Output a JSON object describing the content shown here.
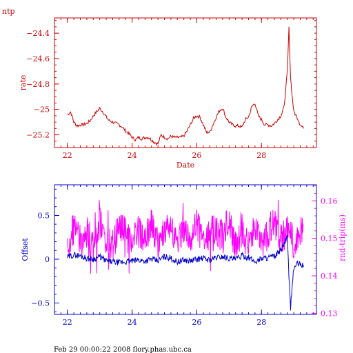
{
  "header": {
    "label": "ntp"
  },
  "footer": {
    "text": "Feb 29 00:00:22 2008 flory.phas.ubc.ca"
  },
  "colors": {
    "rate": "#cc0000",
    "offset": "#0000cc",
    "rtt": "#ff00ff",
    "footer": "#000000"
  },
  "chart_data": [
    {
      "type": "line",
      "xlabel": "Date",
      "ylabel": "rate",
      "xlim": [
        21.6,
        29.7
      ],
      "ylim": [
        -25.3,
        -24.28
      ],
      "xticks": [
        22,
        24,
        26,
        28
      ],
      "yticks": [
        -24.4,
        -24.6,
        -24.8,
        -25,
        -25.2
      ],
      "ytick_labels": [
        "−24.4",
        "−24.6",
        "−24.8",
        "−25",
        "−25.2"
      ],
      "series": [
        {
          "name": "",
          "x": [
            22.0,
            22.1,
            22.2,
            22.3,
            22.4,
            22.5,
            22.6,
            22.7,
            22.8,
            22.9,
            23.0,
            23.1,
            23.2,
            23.3,
            23.4,
            23.5,
            23.6,
            23.7,
            23.8,
            23.9,
            24.0,
            24.1,
            24.2,
            24.3,
            24.4,
            24.5,
            24.6,
            24.7,
            24.8,
            24.9,
            25.0,
            25.1,
            25.2,
            25.3,
            25.4,
            25.5,
            25.6,
            25.7,
            25.8,
            25.9,
            26.0,
            26.1,
            26.2,
            26.3,
            26.4,
            26.5,
            26.6,
            26.7,
            26.8,
            26.9,
            27.0,
            27.1,
            27.2,
            27.3,
            27.4,
            27.5,
            27.6,
            27.7,
            27.8,
            27.9,
            28.0,
            28.1,
            28.2,
            28.3,
            28.4,
            28.5,
            28.6,
            28.7,
            28.8,
            28.85,
            28.9,
            28.95,
            29.0,
            29.1,
            29.2,
            29.3
          ],
          "y": [
            -25.04,
            -25.02,
            -25.1,
            -25.13,
            -25.12,
            -25.12,
            -25.11,
            -25.09,
            -25.05,
            -25.02,
            -24.99,
            -25.02,
            -25.06,
            -25.09,
            -25.1,
            -25.11,
            -25.12,
            -25.14,
            -25.17,
            -25.19,
            -25.22,
            -25.24,
            -25.22,
            -25.23,
            -25.22,
            -25.22,
            -25.24,
            -25.26,
            -25.27,
            -25.2,
            -25.22,
            -25.23,
            -25.21,
            -25.22,
            -25.22,
            -25.22,
            -25.21,
            -25.17,
            -25.12,
            -25.07,
            -25.05,
            -25.06,
            -25.12,
            -25.18,
            -25.18,
            -25.12,
            -25.06,
            -25.01,
            -24.99,
            -25.06,
            -25.1,
            -25.12,
            -25.13,
            -25.13,
            -25.14,
            -25.08,
            -25.06,
            -24.98,
            -24.95,
            -25.05,
            -25.08,
            -25.12,
            -25.12,
            -25.13,
            -25.11,
            -25.08,
            -25.05,
            -24.98,
            -24.7,
            -24.36,
            -24.75,
            -24.9,
            -25.02,
            -25.06,
            -25.12,
            -25.15
          ]
        }
      ]
    },
    {
      "type": "line",
      "xlabel": "",
      "ylabel": "Offset",
      "y2label": "rnd-trip(ms)",
      "xlim": [
        21.6,
        29.7
      ],
      "ylim": [
        -0.63,
        0.85
      ],
      "y2lim": [
        0.1297,
        0.1643
      ],
      "xticks": [
        22,
        24,
        26,
        28
      ],
      "yticks": [
        0.5,
        0,
        -0.5
      ],
      "ytick_labels": [
        "0.5",
        "0",
        "−0.5"
      ],
      "y2ticks": [
        0.16,
        0.15,
        0.14,
        0.13
      ],
      "series": [
        {
          "name": "",
          "axis": "left",
          "x": [
            22.0,
            22.2,
            22.4,
            22.6,
            22.8,
            23.0,
            23.2,
            23.4,
            23.6,
            23.8,
            24.0,
            24.2,
            24.4,
            24.6,
            24.8,
            25.0,
            25.2,
            25.4,
            25.6,
            25.8,
            26.0,
            26.2,
            26.4,
            26.6,
            26.8,
            27.0,
            27.2,
            27.4,
            27.6,
            27.8,
            28.0,
            28.2,
            28.4,
            28.6,
            28.7,
            28.8,
            28.85,
            28.9,
            28.95,
            29.0,
            29.1,
            29.2,
            29.3
          ],
          "y": [
            0.02,
            0.05,
            0.04,
            0.01,
            0.0,
            0.03,
            -0.02,
            -0.03,
            -0.04,
            -0.03,
            -0.02,
            -0.01,
            -0.02,
            0.0,
            -0.02,
            0.03,
            0.01,
            -0.03,
            -0.01,
            -0.02,
            0.0,
            0.01,
            -0.01,
            0.02,
            0.03,
            0.01,
            0.0,
            0.04,
            0.02,
            -0.03,
            0.01,
            0.02,
            0.03,
            0.1,
            0.18,
            0.25,
            -0.2,
            -0.55,
            -0.3,
            -0.1,
            -0.05,
            -0.06,
            -0.07
          ]
        },
        {
          "name": "",
          "axis": "right",
          "x": [
            22.0,
            22.2,
            22.4,
            22.6,
            22.8,
            23.0,
            23.2,
            23.4,
            23.6,
            23.8,
            24.0,
            24.2,
            24.4,
            24.6,
            24.8,
            25.0,
            25.2,
            25.4,
            25.6,
            25.8,
            26.0,
            26.2,
            26.4,
            26.6,
            26.8,
            27.0,
            27.2,
            27.4,
            27.6,
            27.8,
            28.0,
            28.2,
            28.4,
            28.6,
            28.8,
            29.0,
            29.2,
            29.3
          ],
          "y": [
            0.148,
            0.153,
            0.149,
            0.152,
            0.147,
            0.154,
            0.15,
            0.148,
            0.153,
            0.151,
            0.149,
            0.152,
            0.15,
            0.154,
            0.148,
            0.151,
            0.153,
            0.149,
            0.152,
            0.15,
            0.154,
            0.148,
            0.151,
            0.153,
            0.15,
            0.155,
            0.149,
            0.152,
            0.15,
            0.153,
            0.148,
            0.151,
            0.154,
            0.15,
            0.152,
            0.149,
            0.151,
            0.153
          ]
        }
      ]
    }
  ]
}
